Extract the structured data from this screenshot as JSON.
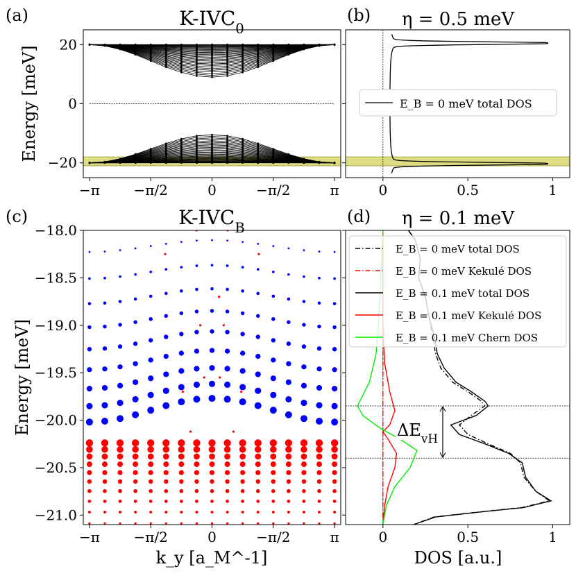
{
  "chart_data": [
    {
      "panel": "(a)",
      "type": "line",
      "title": "K-IVC",
      "title_sub": "0",
      "ylabel": "Energy [meV]",
      "xlabel": "",
      "xlim": [
        -3.3,
        3.3
      ],
      "ylim": [
        -25,
        25
      ],
      "xticks": [
        "−π",
        "−π/2",
        "0",
        "−π/2",
        "π"
      ],
      "yticks": [
        "20",
        "0",
        "−20"
      ],
      "highlight_band": [
        -21,
        -18
      ],
      "bands": {
        "upper_edge": 20,
        "upper_min": 9,
        "lower_edge": -20,
        "lower_max": -10.5
      },
      "zero_line": 0
    },
    {
      "panel": "(b)",
      "type": "line",
      "title": "η = 0.5 meV",
      "xticks": [
        "0",
        "0.5",
        "1"
      ],
      "xlim": [
        -0.22,
        1.1
      ],
      "ylim": [
        -25,
        25
      ],
      "highlight_band": [
        -21,
        -18
      ],
      "legend": [
        "E_B = 0 meV total DOS"
      ],
      "legend_placement": "center",
      "peaks": [
        {
          "y": 20.5,
          "dos": 0.97
        },
        {
          "y": -20.3,
          "dos": 0.97
        }
      ]
    },
    {
      "panel": "(c)",
      "type": "scatter",
      "title": "K-IVC",
      "title_sub": "B",
      "xlabel": "k_y [a_M^-1]",
      "ylabel": "Energy [meV]",
      "ylim": [
        -21.1,
        -18
      ],
      "xlim": [
        -3.3,
        3.3
      ],
      "xticks": [
        "−π",
        "−π/2",
        "0",
        "−π/2",
        "π"
      ],
      "yticks": [
        "−18.0",
        "−18.5",
        "−19.0",
        "−19.5",
        "−20.0",
        "−20.5",
        "−21.0"
      ],
      "series": [
        {
          "color": "#0000ff",
          "energy_range": [
            -20.0,
            -18.0
          ]
        },
        {
          "color": "#ff0000",
          "energy_range": [
            -21.0,
            -20.2
          ]
        }
      ]
    },
    {
      "panel": "(d)",
      "type": "line",
      "title": "η = 0.1 meV",
      "xlabel": "DOS [a.u.]",
      "xticks": [
        "0",
        "0.5",
        "1"
      ],
      "xlim": [
        -0.22,
        1.1
      ],
      "ylim": [
        -21.1,
        -18
      ],
      "hlines": [
        -19.85,
        -20.4
      ],
      "annotation": "ΔE",
      "annotation_sub": "vH",
      "legend_placement": "top-right",
      "series": [
        {
          "name": "E_B = 0 meV total DOS",
          "color": "#000000",
          "style": "dashdot",
          "points": [
            [
              0.15,
              -18
            ],
            [
              0.19,
              -18.1
            ],
            [
              0.22,
              -18.3
            ],
            [
              0.21,
              -18.5
            ],
            [
              0.25,
              -18.7
            ],
            [
              0.27,
              -18.9
            ],
            [
              0.29,
              -19.1
            ],
            [
              0.31,
              -19.3
            ],
            [
              0.34,
              -19.45
            ],
            [
              0.41,
              -19.6
            ],
            [
              0.5,
              -19.7
            ],
            [
              0.58,
              -19.8
            ],
            [
              0.6,
              -19.85
            ],
            [
              0.52,
              -19.95
            ],
            [
              0.45,
              -20.05
            ],
            [
              0.5,
              -20.15
            ],
            [
              0.62,
              -20.25
            ],
            [
              0.75,
              -20.35
            ],
            [
              0.81,
              -20.45
            ],
            [
              0.83,
              -20.6
            ],
            [
              0.9,
              -20.75
            ],
            [
              0.98,
              -20.85
            ],
            [
              0.82,
              -20.92
            ],
            [
              0.55,
              -20.97
            ],
            [
              0.3,
              -21.02
            ],
            [
              0.18,
              -21.1
            ]
          ]
        },
        {
          "name": "E_B = 0 meV Kekulé DOS",
          "color": "#ff0000",
          "style": "dashdot",
          "points": [
            [
              0.0,
              -18
            ],
            [
              0.0,
              -21.1
            ]
          ]
        },
        {
          "name": "E_B = 0.1 meV total DOS",
          "color": "#000000",
          "style": "solid",
          "points": [
            [
              0.15,
              -18
            ],
            [
              0.19,
              -18.1
            ],
            [
              0.22,
              -18.3
            ],
            [
              0.21,
              -18.5
            ],
            [
              0.25,
              -18.7
            ],
            [
              0.27,
              -18.9
            ],
            [
              0.3,
              -19.1
            ],
            [
              0.32,
              -19.3
            ],
            [
              0.36,
              -19.45
            ],
            [
              0.43,
              -19.6
            ],
            [
              0.52,
              -19.7
            ],
            [
              0.6,
              -19.8
            ],
            [
              0.62,
              -19.85
            ],
            [
              0.55,
              -19.95
            ],
            [
              0.4,
              -20.05
            ],
            [
              0.45,
              -20.15
            ],
            [
              0.6,
              -20.25
            ],
            [
              0.74,
              -20.35
            ],
            [
              0.82,
              -20.45
            ],
            [
              0.84,
              -20.6
            ],
            [
              0.9,
              -20.75
            ],
            [
              0.99,
              -20.85
            ],
            [
              0.83,
              -20.92
            ],
            [
              0.56,
              -20.97
            ],
            [
              0.31,
              -21.02
            ],
            [
              0.18,
              -21.1
            ]
          ]
        },
        {
          "name": "E_B = 0.1 meV Kekulé DOS",
          "color": "#ff0000",
          "style": "solid",
          "points": [
            [
              0.0,
              -18
            ],
            [
              0.0,
              -19.0
            ],
            [
              0.01,
              -19.4
            ],
            [
              0.04,
              -19.7
            ],
            [
              0.07,
              -19.9
            ],
            [
              0.04,
              -20.05
            ],
            [
              0.0,
              -20.12
            ],
            [
              0.03,
              -20.2
            ],
            [
              0.08,
              -20.35
            ],
            [
              0.07,
              -20.5
            ],
            [
              0.03,
              -20.7
            ],
            [
              0.01,
              -20.9
            ],
            [
              0.0,
              -21.1
            ]
          ]
        },
        {
          "name": "E_B = 0.1 meV Chern DOS",
          "color": "#00ee00",
          "style": "solid",
          "points": [
            [
              0.0,
              -18
            ],
            [
              -0.02,
              -18.8
            ],
            [
              -0.04,
              -19.3
            ],
            [
              -0.08,
              -19.6
            ],
            [
              -0.15,
              -19.85
            ],
            [
              -0.12,
              -19.95
            ],
            [
              -0.02,
              -20.08
            ],
            [
              0.1,
              -20.2
            ],
            [
              0.2,
              -20.32
            ],
            [
              0.16,
              -20.5
            ],
            [
              0.07,
              -20.7
            ],
            [
              0.02,
              -20.9
            ],
            [
              0.0,
              -21.1
            ]
          ]
        }
      ]
    }
  ]
}
